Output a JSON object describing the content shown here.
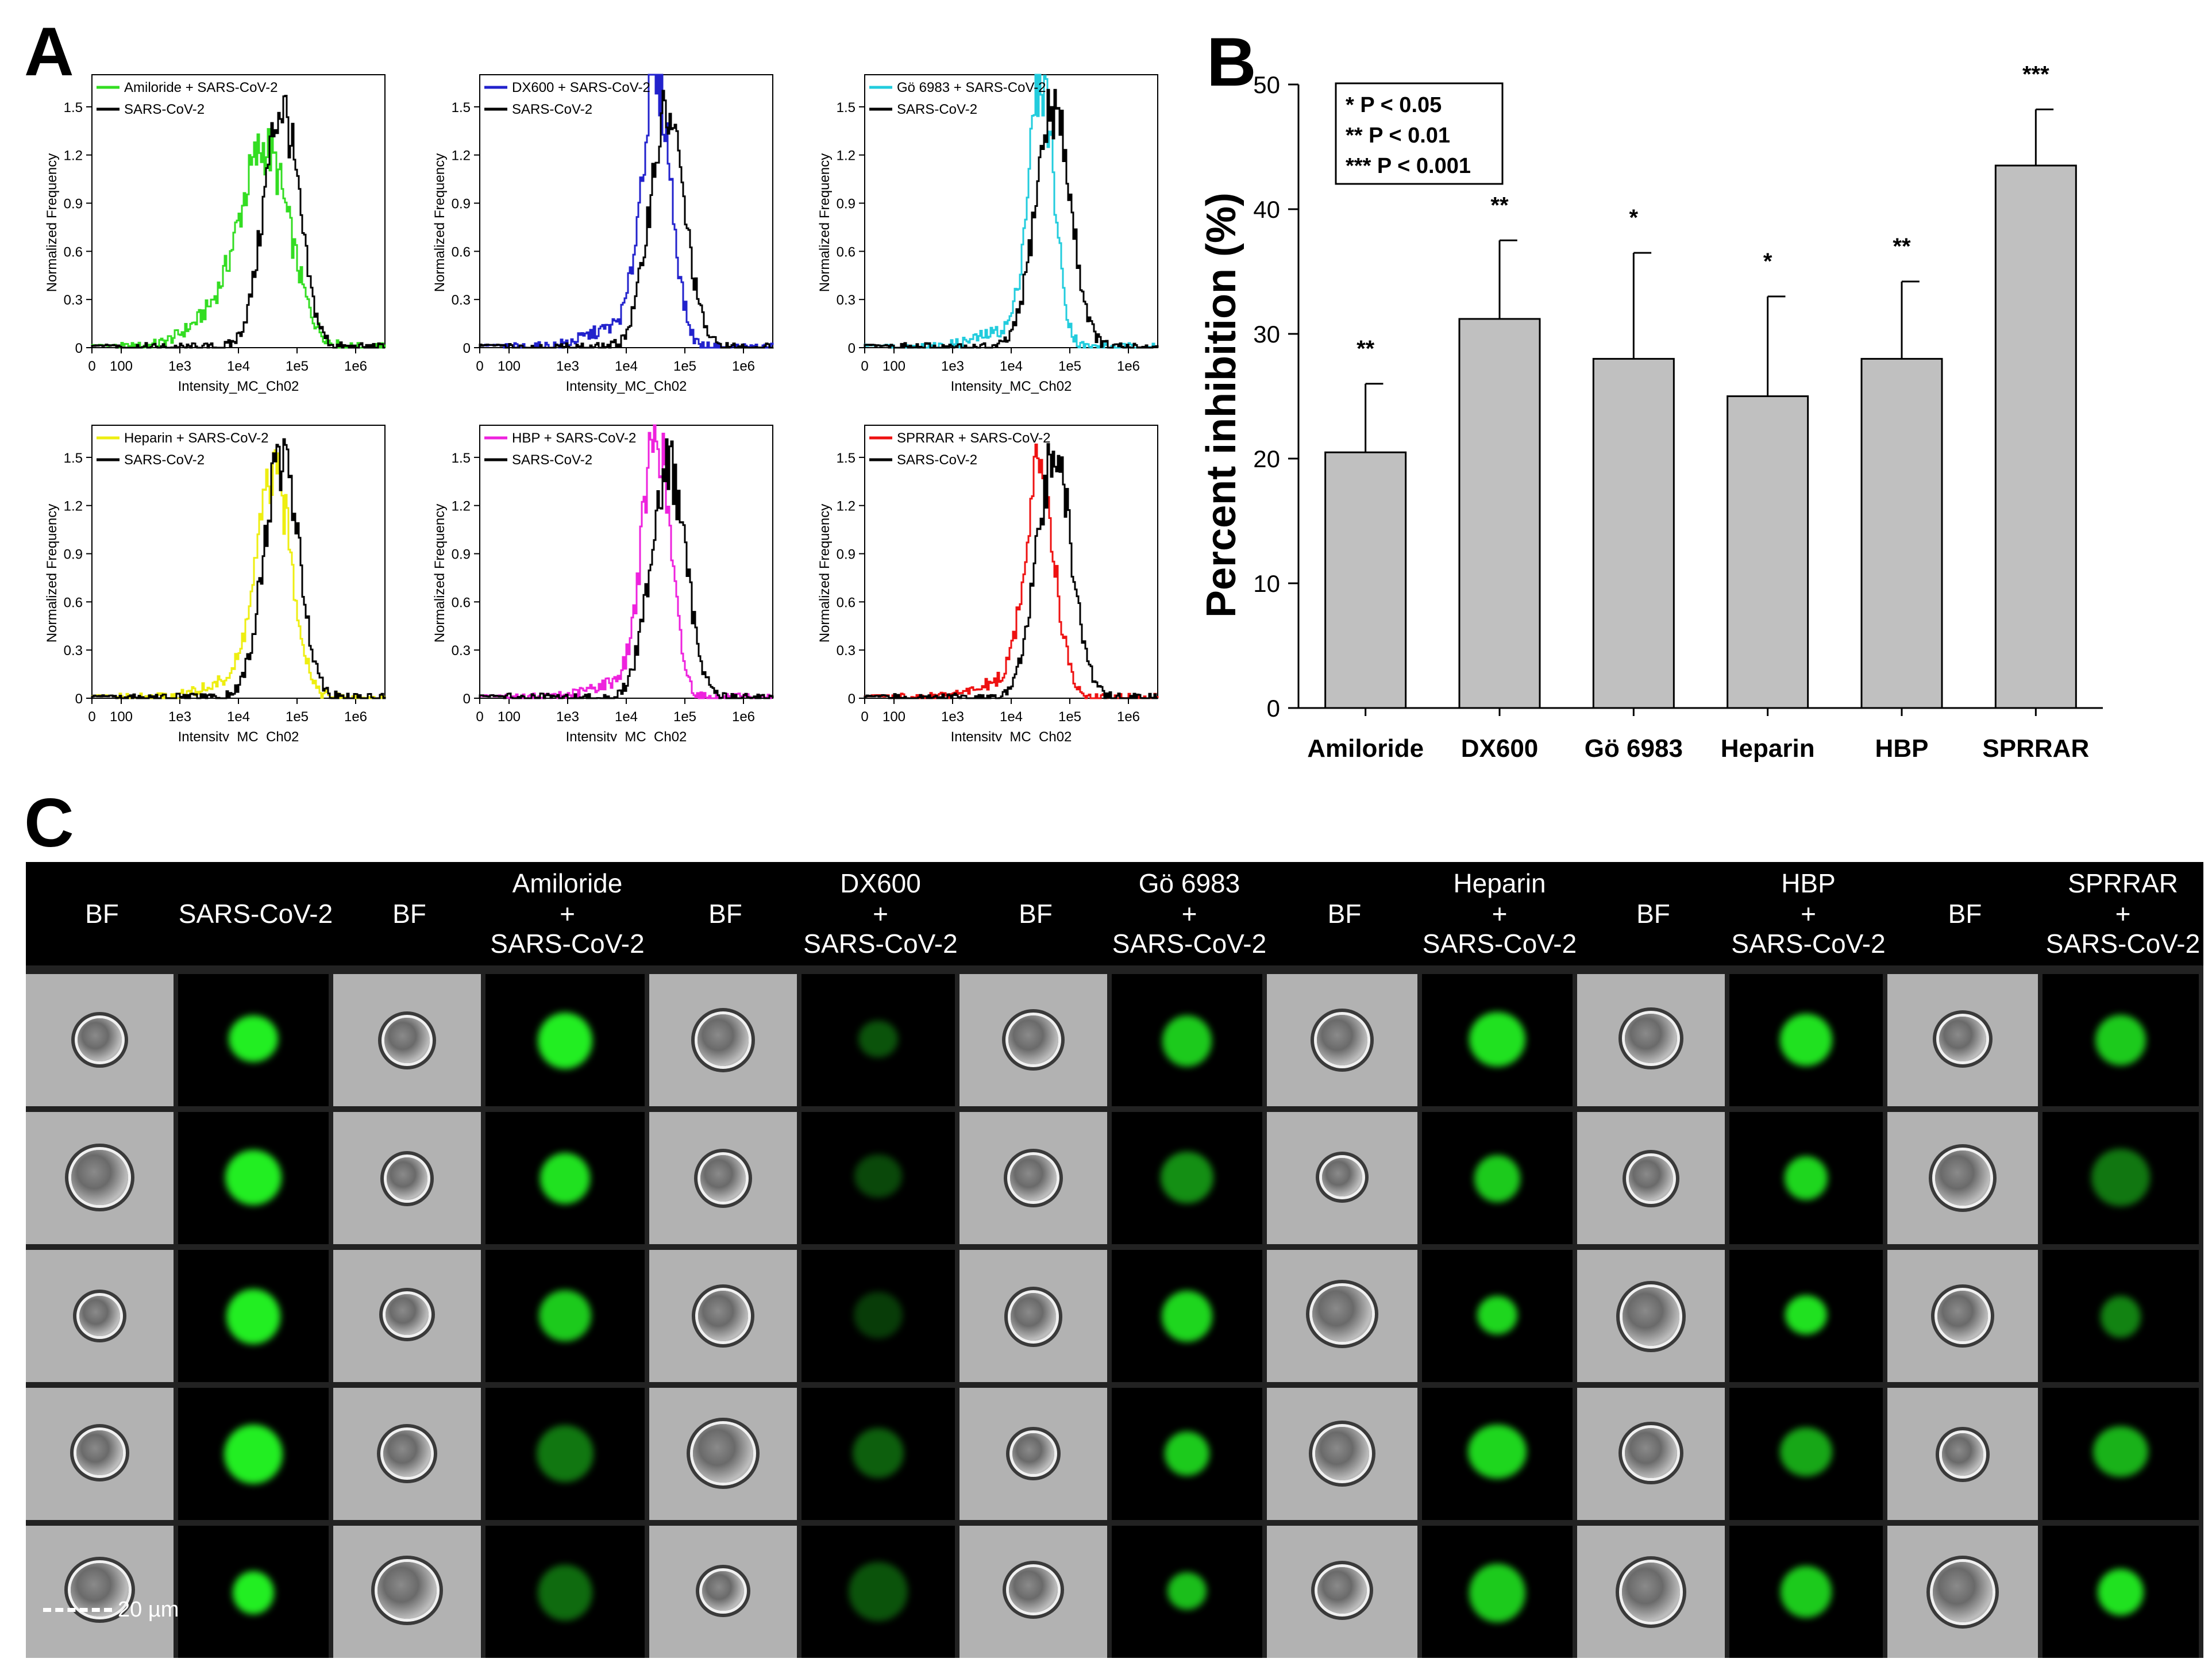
{
  "panel_labels": {
    "a": "A",
    "b": "B",
    "c": "C"
  },
  "colors": {
    "control": "#000000",
    "amiloride": "#33dd22",
    "dx600": "#2222cc",
    "go6983": "#22ccdd",
    "heparin": "#eeee11",
    "hbp": "#ee22dd",
    "sprrar": "#ee1111",
    "bar_fill": "#c0c0c0",
    "green": "#22ee22"
  },
  "histograms": [
    {
      "legend": [
        "Amiloride + SARS-CoV-2",
        "SARS-CoV-2"
      ],
      "color": "#33dd22",
      "ylabel": "Normalized Frequency",
      "xlabel": "Intensity_MC_Ch02",
      "yticks": [
        "0",
        "0.3",
        "0.6",
        "0.9",
        "1.2",
        "1.5"
      ],
      "xticks": [
        "0",
        "100",
        "1e3",
        "1e4",
        "1e5",
        "1e6"
      ],
      "ylim": [
        0,
        1.7
      ],
      "treated": {
        "peak_log": 4.45,
        "peak": 1.2,
        "sigma": 0.42,
        "shoulder_peak": 0.18,
        "shoulder_log": 3.6
      },
      "control": {
        "peak_log": 4.72,
        "peak": 1.5,
        "sigma": 0.3
      }
    },
    {
      "legend": [
        "DX600 + SARS-CoV-2",
        "SARS-CoV-2"
      ],
      "color": "#2222cc",
      "ylabel": "Normalized Frequency",
      "xlabel": "Intensity_MC_Ch02",
      "yticks": [
        "0",
        "0.3",
        "0.6",
        "0.9",
        "1.2",
        "1.5"
      ],
      "xticks": [
        "0",
        "100",
        "1e3",
        "1e4",
        "1e5",
        "1e6"
      ],
      "ylim": [
        0,
        1.7
      ],
      "treated": {
        "peak_log": 4.5,
        "peak": 1.65,
        "sigma": 0.25,
        "shoulder_peak": 0.12,
        "shoulder_log": 3.8
      },
      "control": {
        "peak_log": 4.68,
        "peak": 1.45,
        "sigma": 0.3
      }
    },
    {
      "legend": [
        "Gö 6983 + SARS-CoV-2",
        "SARS-CoV-2"
      ],
      "color": "#22ccdd",
      "ylabel": "Normalized Frequency",
      "xlabel": "Intensity_MC_Ch02",
      "yticks": [
        "0",
        "0.3",
        "0.6",
        "0.9",
        "1.2",
        "1.5"
      ],
      "xticks": [
        "0",
        "100",
        "1e3",
        "1e4",
        "1e5",
        "1e6"
      ],
      "ylim": [
        0,
        1.7
      ],
      "treated": {
        "peak_log": 4.5,
        "peak": 1.62,
        "sigma": 0.22,
        "shoulder_peak": 0.1,
        "shoulder_log": 3.9
      },
      "control": {
        "peak_log": 4.7,
        "peak": 1.5,
        "sigma": 0.3
      }
    },
    {
      "legend": [
        "Heparin + SARS-CoV-2",
        "SARS-CoV-2"
      ],
      "color": "#eeee11",
      "ylabel": "Normalized Frequency",
      "xlabel": "Intensity_MC_Ch02",
      "yticks": [
        "0",
        "0.3",
        "0.6",
        "0.9",
        "1.2",
        "1.5"
      ],
      "xticks": [
        "0",
        "100",
        "1e3",
        "1e4",
        "1e5",
        "1e6"
      ],
      "ylim": [
        0,
        1.7
      ],
      "treated": {
        "peak_log": 4.6,
        "peak": 1.35,
        "sigma": 0.3,
        "shoulder_peak": 0.1,
        "shoulder_log": 3.9
      },
      "control": {
        "peak_log": 4.72,
        "peak": 1.5,
        "sigma": 0.3
      }
    },
    {
      "legend": [
        "HBP + SARS-CoV-2",
        "SARS-CoV-2"
      ],
      "color": "#ee22dd",
      "ylabel": "Normalized Frequency",
      "xlabel": "Intensity_MC_Ch02",
      "yticks": [
        "0",
        "0.3",
        "0.6",
        "0.9",
        "1.2",
        "1.5"
      ],
      "xticks": [
        "0",
        "100",
        "1e3",
        "1e4",
        "1e5",
        "1e6"
      ],
      "ylim": [
        0,
        1.7
      ],
      "treated": {
        "peak_log": 4.5,
        "peak": 1.6,
        "sigma": 0.24,
        "shoulder_peak": 0.1,
        "shoulder_log": 3.9
      },
      "control": {
        "peak_log": 4.7,
        "peak": 1.45,
        "sigma": 0.3
      }
    },
    {
      "legend": [
        "SPRRAR + SARS-CoV-2",
        "SARS-CoV-2"
      ],
      "color": "#ee1111",
      "ylabel": "Normalized Frequency",
      "xlabel": "Intensity_MC_Ch02",
      "yticks": [
        "0",
        "0.3",
        "0.6",
        "0.9",
        "1.2",
        "1.5"
      ],
      "xticks": [
        "0",
        "100",
        "1e3",
        "1e4",
        "1e5",
        "1e6"
      ],
      "ylim": [
        0,
        1.7
      ],
      "treated": {
        "peak_log": 4.48,
        "peak": 1.4,
        "sigma": 0.25,
        "shoulder_peak": 0.1,
        "shoulder_log": 3.9
      },
      "control": {
        "peak_log": 4.72,
        "peak": 1.5,
        "sigma": 0.3
      }
    }
  ],
  "chart_data": {
    "type": "bar",
    "title": "",
    "xlabel": "",
    "ylabel": "Percent inhibition (%)",
    "ylim": [
      0,
      50
    ],
    "yticks": [
      "0",
      "10",
      "20",
      "30",
      "40",
      "50"
    ],
    "categories": [
      "Amiloride",
      "DX600",
      "Gö 6983",
      "Heparin",
      "HBP",
      "SPRRAR"
    ],
    "values": [
      20.5,
      31.2,
      28.0,
      25.0,
      28.0,
      43.5
    ],
    "errors": [
      5.5,
      6.3,
      8.5,
      8.0,
      6.2,
      4.5
    ],
    "significance": [
      "**",
      "**",
      "*",
      "*",
      "**",
      "***"
    ],
    "legend": [
      "* P < 0.05",
      "** P < 0.01",
      "*** P < 0.001"
    ],
    "legend_position": "top-left"
  },
  "image_grid": {
    "headers": [
      "BF",
      "SARS-CoV-2",
      "BF",
      "Amiloride\n+\nSARS-CoV-2",
      "BF",
      "DX600\n+\nSARS-CoV-2",
      "BF",
      "Gö 6983\n+\nSARS-CoV-2",
      "BF",
      "Heparin\n+\nSARS-CoV-2",
      "BF",
      "HBP\n+\nSARS-CoV-2",
      "BF",
      "SPRRAR\n+\nSARS-CoV-2"
    ],
    "brightness": [
      [
        1.0,
        1.0,
        1.0,
        1.0,
        1.0
      ],
      [
        1.0,
        0.95,
        0.85,
        0.5,
        0.45
      ],
      [
        0.35,
        0.3,
        0.25,
        0.4,
        0.35
      ],
      [
        0.85,
        0.6,
        0.9,
        0.85,
        0.8
      ],
      [
        0.95,
        0.85,
        0.9,
        0.9,
        0.85
      ],
      [
        0.95,
        0.9,
        0.95,
        0.7,
        0.85
      ],
      [
        0.85,
        0.5,
        0.55,
        0.75,
        0.95
      ]
    ],
    "scale_bar": "20 µm"
  }
}
